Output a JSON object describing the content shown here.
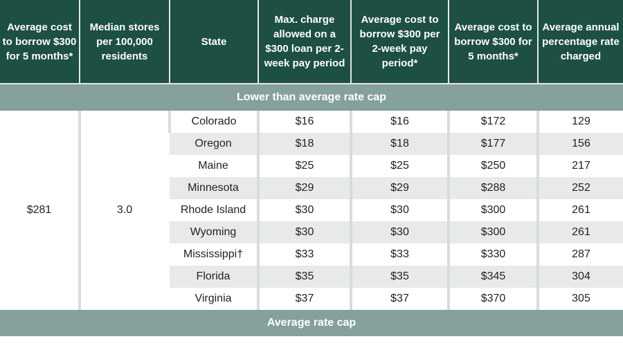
{
  "headers": [
    "Average cost to borrow $300 for 5 months*",
    "Median stores per 100,000 residents",
    "State",
    "Max. charge allowed on a $300 loan per 2-week pay period",
    "Average cost to borrow $300 per 2-week pay period*",
    "Average cost to borrow $300 for 5 months*",
    "Average annual percentage rate charged"
  ],
  "sections": [
    {
      "label": "Lower than average rate cap",
      "avg_cost_5_months": "$281",
      "median_stores": "3.0",
      "rows": [
        {
          "state": "Colorado",
          "max_charge": "$16",
          "avg_2week": "$16",
          "avg_5month": "$172",
          "apr": "129"
        },
        {
          "state": "Oregon",
          "max_charge": "$18",
          "avg_2week": "$18",
          "avg_5month": "$177",
          "apr": "156"
        },
        {
          "state": "Maine",
          "max_charge": "$25",
          "avg_2week": "$25",
          "avg_5month": "$250",
          "apr": "217"
        },
        {
          "state": "Minnesota",
          "max_charge": "$29",
          "avg_2week": "$29",
          "avg_5month": "$288",
          "apr": "252"
        },
        {
          "state": "Rhode Island",
          "max_charge": "$30",
          "avg_2week": "$30",
          "avg_5month": "$300",
          "apr": "261"
        },
        {
          "state": "Wyoming",
          "max_charge": "$30",
          "avg_2week": "$30",
          "avg_5month": "$300",
          "apr": "261"
        },
        {
          "state": "Mississippi†",
          "max_charge": "$33",
          "avg_2week": "$33",
          "avg_5month": "$330",
          "apr": "287"
        },
        {
          "state": "Florida",
          "max_charge": "$35",
          "avg_2week": "$35",
          "avg_5month": "$345",
          "apr": "304"
        },
        {
          "state": "Virginia",
          "max_charge": "$37",
          "avg_2week": "$37",
          "avg_5month": "$370",
          "apr": "305"
        }
      ]
    },
    {
      "label": "Average rate cap"
    }
  ],
  "colors": {
    "header": "#1d4f43",
    "section": "#86a09b",
    "stripe": "#e7eae9"
  }
}
